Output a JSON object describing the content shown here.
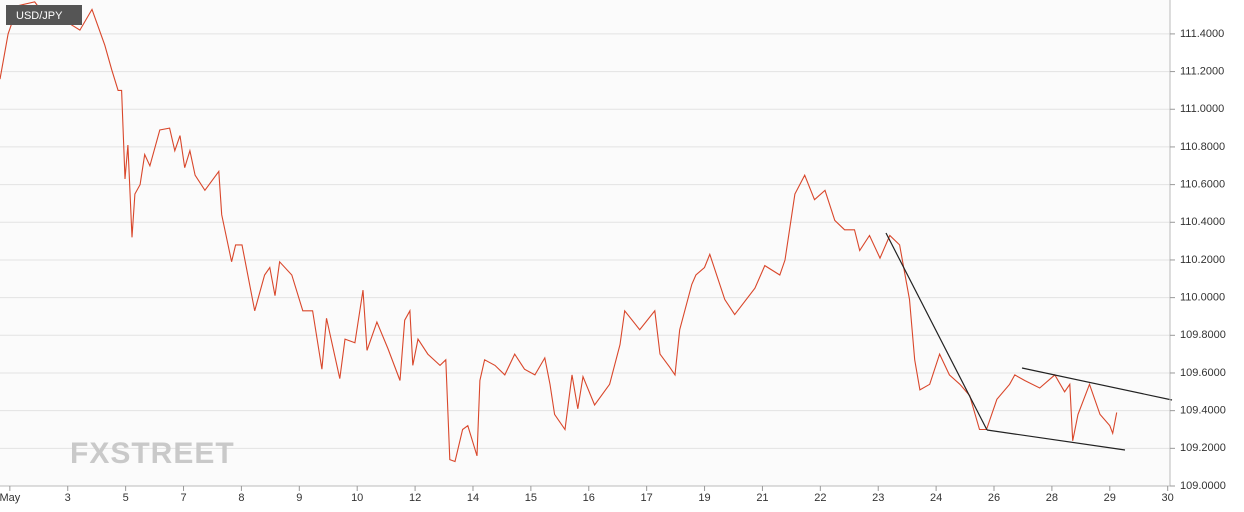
{
  "chart_data": {
    "type": "line",
    "title": "USD/JPY",
    "watermark": "FXSTREET",
    "series": [
      {
        "name": "USD/JPY",
        "color": "#d9472b",
        "x": [
          -0.17,
          -0.03,
          0.14,
          0.43,
          0.6,
          0.95,
          1.21,
          1.42,
          1.64,
          1.76,
          1.87,
          1.93,
          1.99,
          2.04,
          2.11,
          2.16,
          2.25,
          2.33,
          2.42,
          2.59,
          2.76,
          2.85,
          2.94,
          3.02,
          3.11,
          3.2,
          3.37,
          3.61,
          3.66,
          3.83,
          3.9,
          4.01,
          4.11,
          4.23,
          4.4,
          4.49,
          4.58,
          4.66,
          4.87,
          5.06,
          5.23,
          5.39,
          5.47,
          5.7,
          5.79,
          5.96,
          6.1,
          6.17,
          6.34,
          6.53,
          6.74,
          6.82,
          6.91,
          6.96,
          7.05,
          7.22,
          7.43,
          7.53,
          7.6,
          7.69,
          7.82,
          7.91,
          8.07,
          8.12,
          8.2,
          8.38,
          8.55,
          8.72,
          8.89,
          9.07,
          9.24,
          9.33,
          9.41,
          9.59,
          9.71,
          9.81,
          9.9,
          10.1,
          10.36,
          10.54,
          10.62,
          10.88,
          11.14,
          11.23,
          11.4,
          11.49,
          11.57,
          11.78,
          11.85,
          12.0,
          12.09,
          12.35,
          12.52,
          12.87,
          13.04,
          13.3,
          13.39,
          13.56,
          13.73,
          13.9,
          14.08,
          14.25,
          14.42,
          14.59,
          14.68,
          14.85,
          15.03,
          15.2,
          15.37,
          15.54,
          15.63,
          15.72,
          15.89,
          16.06,
          16.23,
          16.41,
          16.58,
          16.75,
          16.87,
          17.05,
          17.27,
          17.36,
          17.53,
          17.79,
          18.05,
          18.22,
          18.31,
          18.36,
          18.45,
          18.65,
          18.83,
          19.0,
          19.05,
          19.12
        ],
        "values": [
          111.16,
          111.4,
          111.55,
          111.57,
          111.5,
          111.47,
          111.42,
          111.53,
          111.34,
          111.21,
          111.1,
          111.1,
          110.63,
          110.81,
          110.32,
          110.55,
          110.6,
          110.76,
          110.7,
          110.89,
          110.9,
          110.78,
          110.86,
          110.69,
          110.78,
          110.65,
          110.57,
          110.67,
          110.44,
          110.19,
          110.28,
          110.28,
          110.12,
          109.93,
          110.12,
          110.16,
          110.01,
          110.19,
          110.12,
          109.93,
          109.93,
          109.62,
          109.89,
          109.57,
          109.78,
          109.76,
          110.04,
          109.72,
          109.87,
          109.73,
          109.56,
          109.88,
          109.93,
          109.64,
          109.78,
          109.7,
          109.64,
          109.67,
          109.14,
          109.13,
          109.3,
          109.32,
          109.16,
          109.56,
          109.67,
          109.64,
          109.59,
          109.7,
          109.62,
          109.59,
          109.68,
          109.54,
          109.38,
          109.3,
          109.59,
          109.41,
          109.58,
          109.43,
          109.54,
          109.75,
          109.93,
          109.83,
          109.93,
          109.7,
          109.63,
          109.59,
          109.83,
          110.07,
          110.12,
          110.16,
          110.23,
          109.99,
          109.91,
          110.05,
          110.17,
          110.12,
          110.2,
          110.55,
          110.65,
          110.52,
          110.57,
          110.41,
          110.36,
          110.36,
          110.25,
          110.33,
          110.21,
          110.33,
          110.28,
          109.99,
          109.67,
          109.51,
          109.54,
          109.7,
          109.59,
          109.54,
          109.48,
          109.3,
          109.3,
          109.46,
          109.54,
          109.59,
          109.56,
          109.52,
          109.59,
          109.5,
          109.54,
          109.24,
          109.38,
          109.54,
          109.38,
          109.32,
          109.28,
          109.39
        ]
      }
    ],
    "xlim": [
      -0.17,
      20.04
    ],
    "xticks": [
      {
        "value": 0,
        "label": "May"
      },
      {
        "value": 1,
        "label": "3"
      },
      {
        "value": 2,
        "label": "5"
      },
      {
        "value": 3,
        "label": "7"
      },
      {
        "value": 4,
        "label": "8"
      },
      {
        "value": 5,
        "label": "9"
      },
      {
        "value": 6,
        "label": "10"
      },
      {
        "value": 7,
        "label": "12"
      },
      {
        "value": 8,
        "label": "14"
      },
      {
        "value": 9,
        "label": "15"
      },
      {
        "value": 10,
        "label": "16"
      },
      {
        "value": 11,
        "label": "17"
      },
      {
        "value": 12,
        "label": "19"
      },
      {
        "value": 13,
        "label": "21"
      },
      {
        "value": 14,
        "label": "22"
      },
      {
        "value": 15,
        "label": "23"
      },
      {
        "value": 16,
        "label": "24"
      },
      {
        "value": 17,
        "label": "26"
      },
      {
        "value": 18,
        "label": "28"
      },
      {
        "value": 19,
        "label": "29"
      },
      {
        "value": 20,
        "label": "30"
      }
    ],
    "ylim": [
      109.0,
      111.58
    ],
    "yticks": [
      {
        "value": 109.0,
        "label": "109.0000"
      },
      {
        "value": 109.2,
        "label": "109.2000"
      },
      {
        "value": 109.4,
        "label": "109.4000"
      },
      {
        "value": 109.6,
        "label": "109.6000"
      },
      {
        "value": 109.8,
        "label": "109.8000"
      },
      {
        "value": 110.0,
        "label": "110.0000"
      },
      {
        "value": 110.2,
        "label": "110.2000"
      },
      {
        "value": 110.4,
        "label": "110.4000"
      },
      {
        "value": 110.6,
        "label": "110.6000"
      },
      {
        "value": 110.8,
        "label": "110.8000"
      },
      {
        "value": 111.0,
        "label": "111.0000"
      },
      {
        "value": 111.2,
        "label": "111.2000"
      },
      {
        "value": 111.4,
        "label": "111.4000"
      }
    ],
    "grid": true
  }
}
